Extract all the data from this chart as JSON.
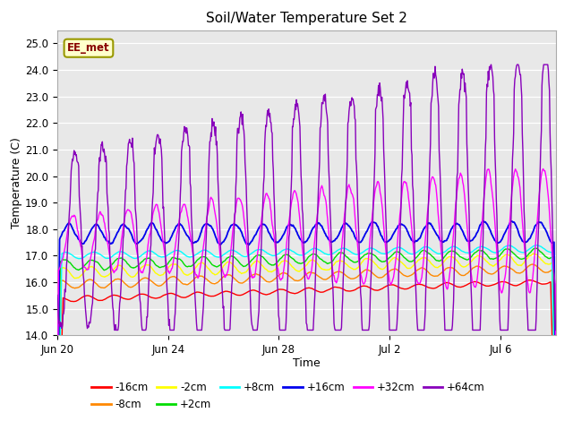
{
  "title": "Soil/Water Temperature Set 2",
  "xlabel": "Time",
  "ylabel": "Temperature (C)",
  "ylim": [
    14.0,
    25.5
  ],
  "yticks": [
    14.0,
    15.0,
    16.0,
    17.0,
    18.0,
    19.0,
    20.0,
    21.0,
    22.0,
    23.0,
    24.0,
    25.0
  ],
  "xtick_labels": [
    "Jun 20",
    "Jun 24",
    "Jun 28",
    "Jul 2",
    "Jul 6"
  ],
  "xtick_positions": [
    0,
    4,
    8,
    12,
    16
  ],
  "n_days": 18,
  "series_colors": {
    "-16cm": "#ff0000",
    "-8cm": "#ff8800",
    "-2cm": "#ffff00",
    "+2cm": "#00dd00",
    "+8cm": "#00ffff",
    "+16cm": "#0000ee",
    "+32cm": "#ff00ff",
    "+64cm": "#8800bb"
  },
  "annotation_text": "EE_met",
  "plot_bg": "#e8e8e8",
  "fig_bg": "#ffffff",
  "grid_color": "#ffffff"
}
